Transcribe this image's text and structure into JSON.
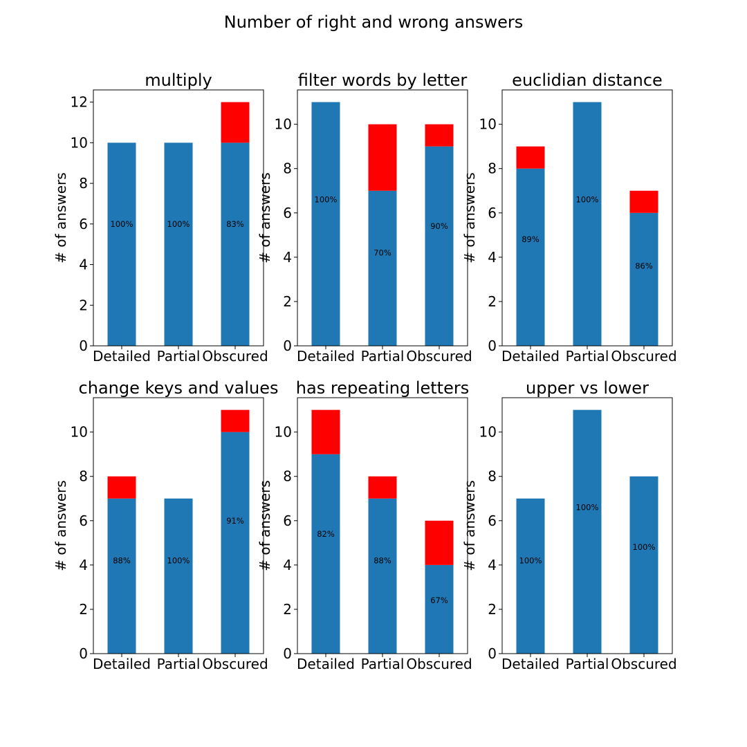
{
  "suptitle": "Number of right and wrong answers",
  "colors": {
    "right": "#1f77b4",
    "wrong": "#ff0000"
  },
  "chart_data": [
    {
      "type": "bar",
      "stacked": true,
      "title": "multiply",
      "ylabel": "# of answers",
      "categories": [
        "Detailed",
        "Partial",
        "Obscured"
      ],
      "series": [
        {
          "key": "right",
          "values": [
            10,
            10,
            10
          ]
        },
        {
          "key": "wrong",
          "values": [
            0,
            0,
            2
          ]
        }
      ],
      "labels": [
        "100%",
        "100%",
        "83%"
      ],
      "ylim": [
        0,
        12.6
      ],
      "yticks": [
        0,
        2,
        4,
        6,
        8,
        10,
        12
      ]
    },
    {
      "type": "bar",
      "stacked": true,
      "title": "filter words by letter",
      "ylabel": "# of answers",
      "categories": [
        "Detailed",
        "Partial",
        "Obscured"
      ],
      "series": [
        {
          "key": "right",
          "values": [
            11,
            7,
            9
          ]
        },
        {
          "key": "wrong",
          "values": [
            0,
            3,
            1
          ]
        }
      ],
      "labels": [
        "100%",
        "70%",
        "90%"
      ],
      "ylim": [
        0,
        11.55
      ],
      "yticks": [
        0,
        2,
        4,
        6,
        8,
        10
      ]
    },
    {
      "type": "bar",
      "stacked": true,
      "title": "euclidian distance",
      "ylabel": "# of answers",
      "categories": [
        "Detailed",
        "Partial",
        "Obscured"
      ],
      "series": [
        {
          "key": "right",
          "values": [
            8,
            11,
            6
          ]
        },
        {
          "key": "wrong",
          "values": [
            1,
            0,
            1
          ]
        }
      ],
      "labels": [
        "89%",
        "100%",
        "86%"
      ],
      "ylim": [
        0,
        11.55
      ],
      "yticks": [
        0,
        2,
        4,
        6,
        8,
        10
      ]
    },
    {
      "type": "bar",
      "stacked": true,
      "title": "change keys and values",
      "ylabel": "# of answers",
      "categories": [
        "Detailed",
        "Partial",
        "Obscured"
      ],
      "series": [
        {
          "key": "right",
          "values": [
            7,
            7,
            10
          ]
        },
        {
          "key": "wrong",
          "values": [
            1,
            0,
            1
          ]
        }
      ],
      "labels": [
        "88%",
        "100%",
        "91%"
      ],
      "ylim": [
        0,
        11.55
      ],
      "yticks": [
        0,
        2,
        4,
        6,
        8,
        10
      ]
    },
    {
      "type": "bar",
      "stacked": true,
      "title": "has repeating letters",
      "ylabel": "# of answers",
      "categories": [
        "Detailed",
        "Partial",
        "Obscured"
      ],
      "series": [
        {
          "key": "right",
          "values": [
            9,
            7,
            4
          ]
        },
        {
          "key": "wrong",
          "values": [
            2,
            1,
            2
          ]
        }
      ],
      "labels": [
        "82%",
        "88%",
        "67%"
      ],
      "ylim": [
        0,
        11.55
      ],
      "yticks": [
        0,
        2,
        4,
        6,
        8,
        10
      ]
    },
    {
      "type": "bar",
      "stacked": true,
      "title": "upper vs lower",
      "ylabel": "# of answers",
      "categories": [
        "Detailed",
        "Partial",
        "Obscured"
      ],
      "series": [
        {
          "key": "right",
          "values": [
            7,
            11,
            8
          ]
        },
        {
          "key": "wrong",
          "values": [
            0,
            0,
            0
          ]
        }
      ],
      "labels": [
        "100%",
        "100%",
        "100%"
      ],
      "ylim": [
        0,
        11.55
      ],
      "yticks": [
        0,
        2,
        4,
        6,
        8,
        10
      ]
    }
  ]
}
